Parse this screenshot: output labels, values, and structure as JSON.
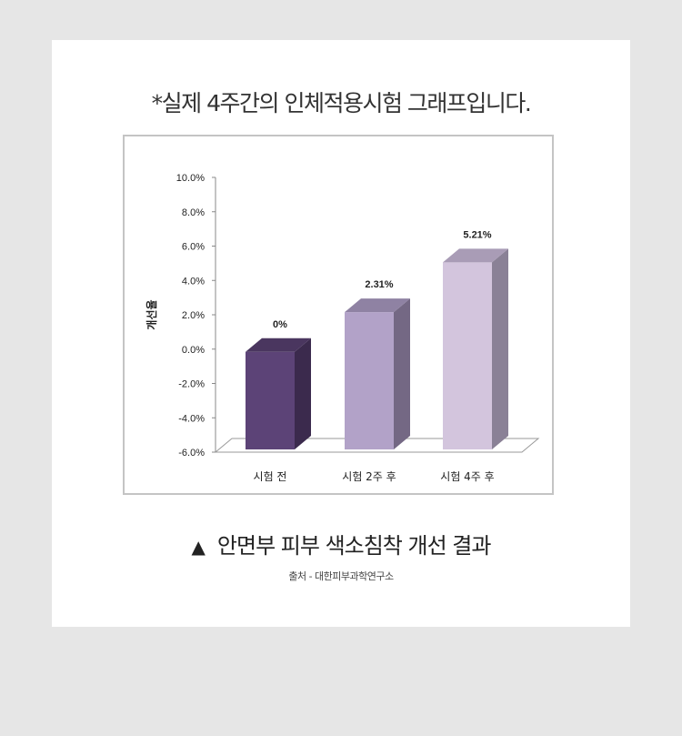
{
  "note": "*실제 4주간의 인체적용시험 그래프입니다.",
  "caption": {
    "marker": "▲",
    "text": "안면부 피부 색소침착 개선 결과"
  },
  "source": "출처 - 대한피부과학연구소",
  "chart_data": {
    "type": "bar",
    "categories": [
      "시험 전",
      "시험 2주 후",
      "시험 4주 후"
    ],
    "values": [
      0,
      2.31,
      5.21
    ],
    "data_labels": [
      "0%",
      "2.31%",
      "5.21%"
    ],
    "ylabel": "개선율",
    "ylim": [
      -6.0,
      10.0
    ],
    "yticks": [
      "10.0%",
      "8.0%",
      "6.0%",
      "4.0%",
      "2.0%",
      "0.0%",
      "-2.0%",
      "-4.0%",
      "-6.0%"
    ],
    "ytick_values": [
      10,
      8,
      6,
      4,
      2,
      0,
      -2,
      -4,
      -6
    ],
    "style": "3d",
    "bar_colors": [
      "#5c4377",
      "#b2a2c8",
      "#d3c5dd"
    ],
    "bar_side_colors": [
      "#3b2a4d",
      "#746884",
      "#8a8196"
    ],
    "bar_top_colors": [
      "#4a365f",
      "#8f82a3",
      "#a99cb6"
    ],
    "grid": false,
    "legend": "none"
  }
}
